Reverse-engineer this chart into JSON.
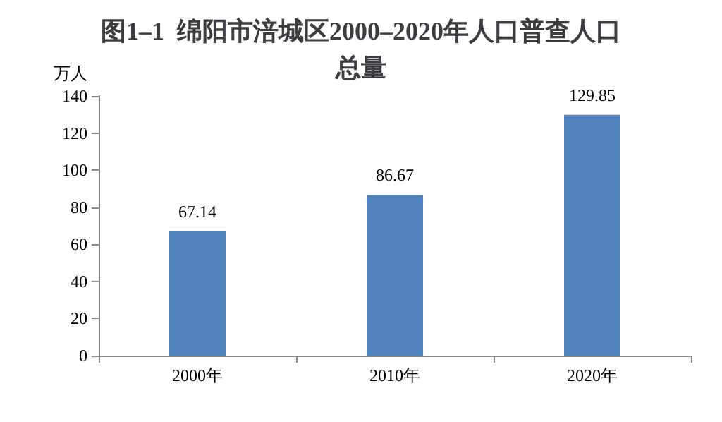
{
  "chart_data": {
    "type": "bar",
    "title": "图1–1  绵阳市涪城区2000–2020年人口普查人口总量",
    "ylabel": "万人",
    "categories": [
      "2000年",
      "2010年",
      "2020年"
    ],
    "values": [
      67.14,
      86.67,
      129.85
    ],
    "color": "#4f81bd",
    "ylim": [
      0,
      140
    ],
    "yticks": [
      0,
      20,
      40,
      60,
      80,
      100,
      120,
      140
    ],
    "grid": false,
    "data_labels": true
  }
}
